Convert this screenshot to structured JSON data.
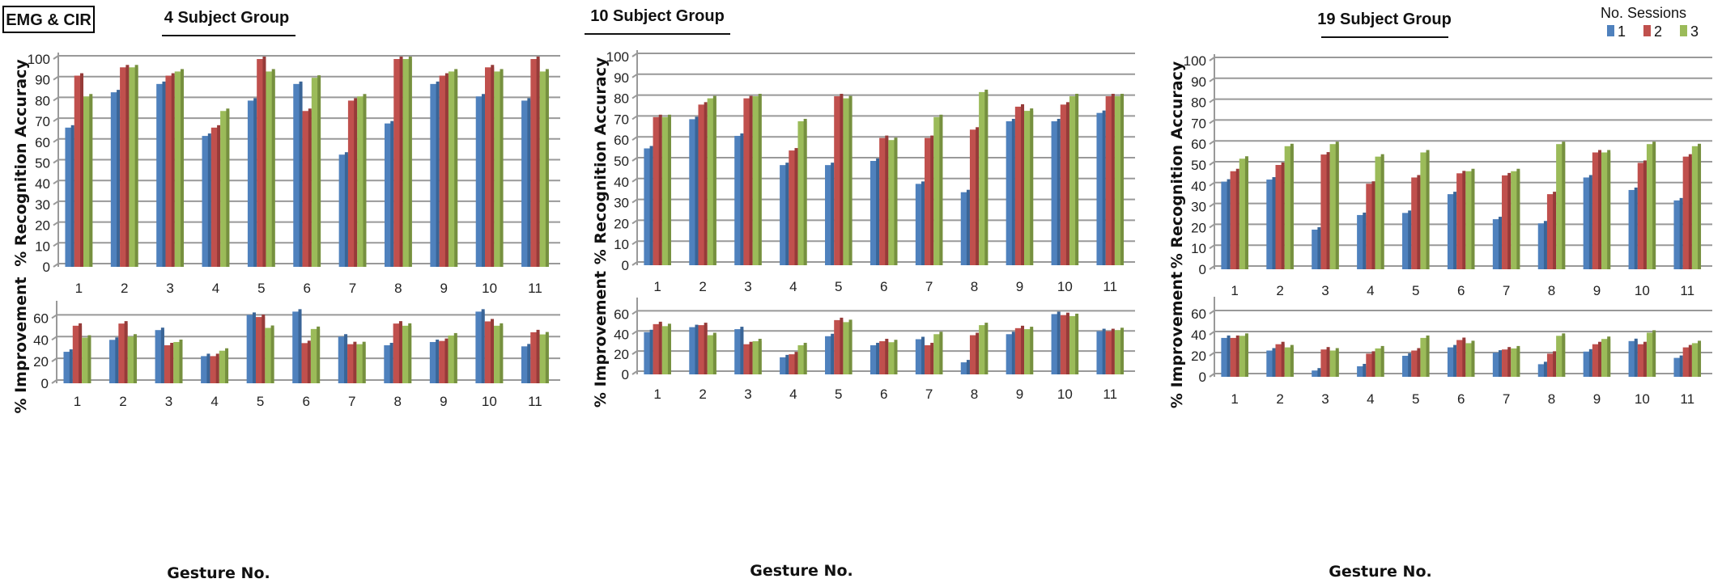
{
  "badge": "EMG & CIR",
  "legend": {
    "title": "No. Sessions",
    "items": [
      "1",
      "2",
      "3"
    ]
  },
  "colors": {
    "s1": "#4f81bd",
    "s2": "#c0504d",
    "s3": "#9bbb59",
    "grid": "#999999"
  },
  "chart_data": [
    {
      "type": "bar",
      "title": "4 Subject Group",
      "xlabel": "",
      "ylabel": "% Recognition Accuracy",
      "categories": [
        "1",
        "2",
        "3",
        "4",
        "5",
        "6",
        "7",
        "8",
        "9",
        "10",
        "11"
      ],
      "ylim": [
        0,
        100
      ],
      "yticks": [
        0,
        10,
        20,
        30,
        40,
        50,
        60,
        70,
        80,
        90,
        100
      ],
      "grid": true,
      "series": [
        {
          "name": "1",
          "values": [
            67,
            84,
            88,
            63,
            80,
            88,
            54,
            69,
            88,
            82,
            80
          ]
        },
        {
          "name": "2",
          "values": [
            92,
            96,
            92,
            67,
            100,
            75,
            80,
            100,
            92,
            96,
            100
          ]
        },
        {
          "name": "3",
          "values": [
            82,
            96,
            94,
            75,
            94,
            91,
            82,
            100,
            94,
            94,
            94
          ]
        }
      ]
    },
    {
      "type": "bar",
      "title": "10 Subject Group",
      "xlabel": "",
      "ylabel": "% Recognition Accuracy",
      "categories": [
        "1",
        "2",
        "3",
        "4",
        "5",
        "6",
        "7",
        "8",
        "9",
        "10",
        "11"
      ],
      "ylim": [
        0,
        100
      ],
      "yticks": [
        0,
        10,
        20,
        30,
        40,
        50,
        60,
        70,
        80,
        90,
        100
      ],
      "grid": true,
      "series": [
        {
          "name": "1",
          "values": [
            56,
            70,
            62,
            48,
            48,
            50,
            39,
            35,
            69,
            69,
            73
          ]
        },
        {
          "name": "2",
          "values": [
            71,
            77,
            80,
            55,
            81,
            61,
            61,
            65,
            76,
            77,
            81
          ]
        },
        {
          "name": "3",
          "values": [
            71,
            80,
            81,
            69,
            80,
            60,
            71,
            83,
            74,
            81,
            81
          ]
        }
      ]
    },
    {
      "type": "bar",
      "title": "19 Subject Group",
      "xlabel": "",
      "ylabel": "% Recognition Accuracy",
      "categories": [
        "1",
        "2",
        "3",
        "4",
        "5",
        "6",
        "7",
        "8",
        "9",
        "10",
        "11"
      ],
      "ylim": [
        0,
        100
      ],
      "yticks": [
        0,
        10,
        20,
        30,
        40,
        50,
        60,
        70,
        80,
        90,
        100
      ],
      "grid": true,
      "series": [
        {
          "name": "1",
          "values": [
            42,
            43,
            19,
            26,
            27,
            36,
            24,
            22,
            44,
            38,
            33
          ]
        },
        {
          "name": "2",
          "values": [
            47,
            50,
            55,
            41,
            44,
            46,
            45,
            36,
            56,
            51,
            54
          ]
        },
        {
          "name": "3",
          "values": [
            53,
            59,
            60,
            54,
            56,
            47,
            47,
            60,
            56,
            60,
            59
          ]
        }
      ]
    },
    {
      "type": "bar",
      "title": "",
      "xlabel": "Gesture No.",
      "ylabel": "% Improvement",
      "categories": [
        "1",
        "2",
        "3",
        "4",
        "5",
        "6",
        "7",
        "8",
        "9",
        "10",
        "11"
      ],
      "ylim": [
        0,
        70
      ],
      "yticks": [
        0,
        20,
        40,
        60
      ],
      "grid": true,
      "series": [
        {
          "name": "1",
          "values": [
            29,
            40,
            49,
            25,
            63,
            66,
            43,
            35,
            38,
            66,
            34
          ]
        },
        {
          "name": "2",
          "values": [
            53,
            55,
            35,
            25,
            61,
            37,
            36,
            55,
            39,
            57,
            47
          ]
        },
        {
          "name": "3",
          "values": [
            42,
            43,
            38,
            30,
            51,
            50,
            36,
            53,
            44,
            53,
            45
          ]
        }
      ]
    },
    {
      "type": "bar",
      "title": "",
      "xlabel": "Gesture No.",
      "ylabel": "% Improvement",
      "categories": [
        "1",
        "2",
        "3",
        "4",
        "5",
        "6",
        "7",
        "8",
        "9",
        "10",
        "11"
      ],
      "ylim": [
        0,
        70
      ],
      "yticks": [
        0,
        20,
        40,
        60
      ],
      "grid": true,
      "series": [
        {
          "name": "1",
          "values": [
            42,
            47,
            45,
            17,
            38,
            29,
            35,
            12,
            40,
            60,
            43
          ]
        },
        {
          "name": "2",
          "values": [
            50,
            49,
            30,
            20,
            54,
            33,
            29,
            39,
            46,
            59,
            43
          ]
        },
        {
          "name": "3",
          "values": [
            48,
            39,
            33,
            29,
            52,
            32,
            40,
            49,
            45,
            58,
            44
          ]
        }
      ]
    },
    {
      "type": "bar",
      "title": "",
      "xlabel": "Gesture No.",
      "ylabel": "% Improvement",
      "categories": [
        "1",
        "2",
        "3",
        "4",
        "5",
        "6",
        "7",
        "8",
        "9",
        "10",
        "11"
      ],
      "ylim": [
        0,
        70
      ],
      "yticks": [
        0,
        20,
        40,
        60
      ],
      "grid": true,
      "series": [
        {
          "name": "1",
          "values": [
            37,
            25,
            6,
            10,
            20,
            28,
            23,
            12,
            24,
            34,
            18
          ]
        },
        {
          "name": "2",
          "values": [
            37,
            31,
            26,
            22,
            25,
            35,
            26,
            22,
            31,
            31,
            28
          ]
        },
        {
          "name": "3",
          "values": [
            39,
            28,
            25,
            27,
            37,
            32,
            27,
            39,
            36,
            42,
            32
          ]
        }
      ]
    }
  ]
}
